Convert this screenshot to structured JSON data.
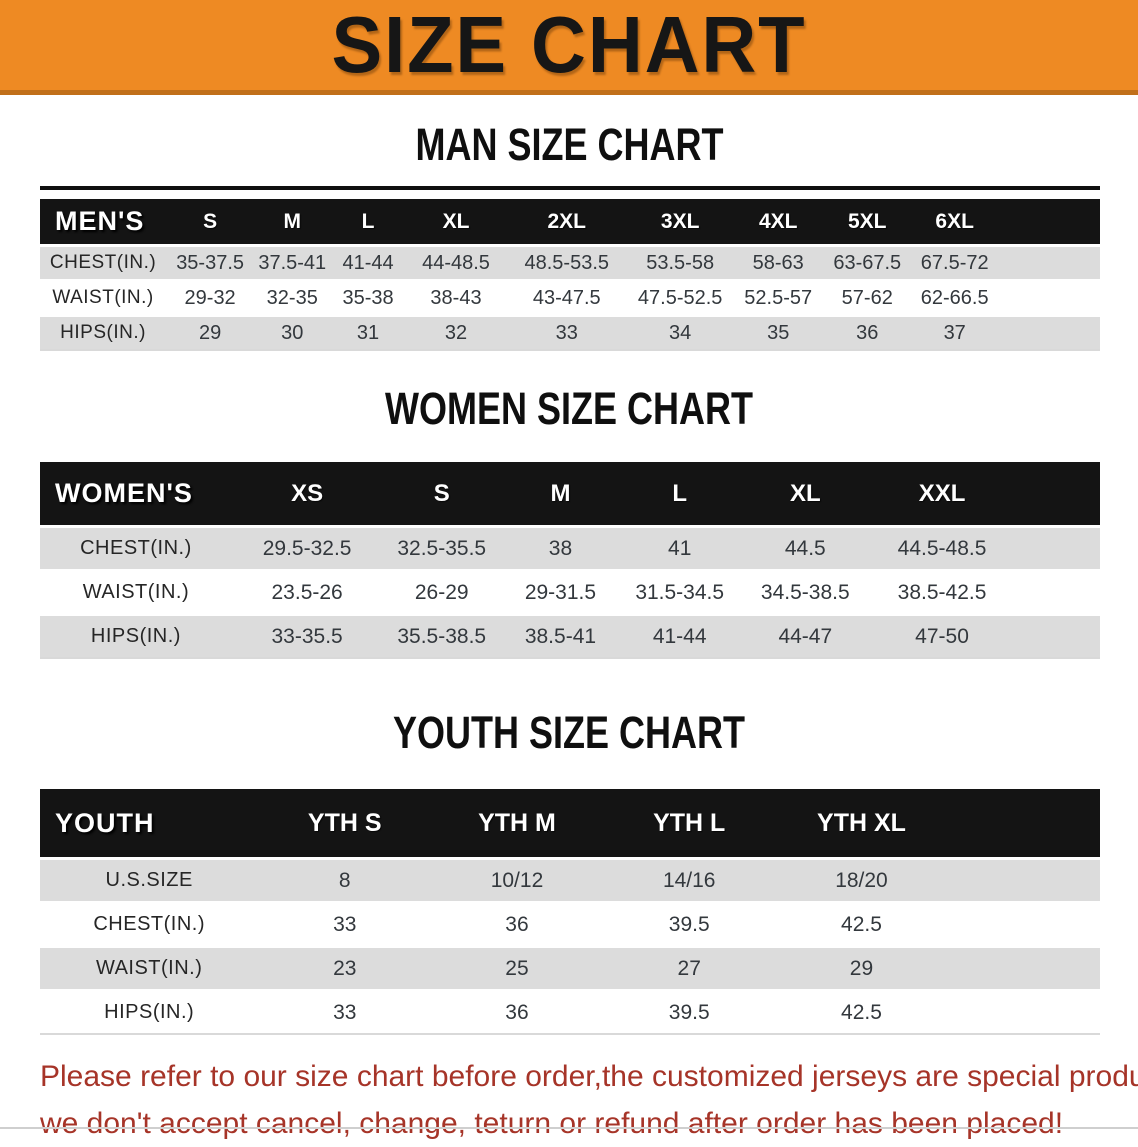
{
  "banner": {
    "title": "SIZE CHART",
    "bg_color": "#ee8a23",
    "text_color": "#161616"
  },
  "colors": {
    "table_header_bg": "#141414",
    "table_header_text": "#ffffff",
    "row_shade": "#dcdcdc",
    "footer_text": "#a63428"
  },
  "sections": [
    {
      "id": "men",
      "title": "MAN SIZE CHART",
      "header": [
        "MEN'S",
        "S",
        "M",
        "L",
        "XL",
        "2XL",
        "3XL",
        "4XL",
        "5XL",
        "6XL"
      ],
      "rows": [
        {
          "label": "CHEST(IN.)",
          "values": [
            "35-37.5",
            "37.5-41",
            "41-44",
            "44-48.5",
            "48.5-53.5",
            "53.5-58",
            "58-63",
            "63-67.5",
            "67.5-72"
          ]
        },
        {
          "label": "WAIST(IN.)",
          "values": [
            "29-32",
            "32-35",
            "35-38",
            "38-43",
            "43-47.5",
            "47.5-52.5",
            "52.5-57",
            "57-62",
            "62-66.5"
          ]
        },
        {
          "label": "HIPS(IN.)",
          "values": [
            "29",
            "30",
            "31",
            "32",
            "33",
            "34",
            "35",
            "36",
            "37"
          ]
        }
      ]
    },
    {
      "id": "women",
      "title": "WOMEN SIZE CHART",
      "header": [
        "WOMEN'S",
        "XS",
        "S",
        "M",
        "L",
        "XL",
        "XXL"
      ],
      "rows": [
        {
          "label": "CHEST(IN.)",
          "values": [
            "29.5-32.5",
            "32.5-35.5",
            "38",
            "41",
            "44.5",
            "44.5-48.5"
          ]
        },
        {
          "label": "WAIST(IN.)",
          "values": [
            "23.5-26",
            "26-29",
            "29-31.5",
            "31.5-34.5",
            "34.5-38.5",
            "38.5-42.5"
          ]
        },
        {
          "label": "HIPS(IN.)",
          "values": [
            "33-35.5",
            "35.5-38.5",
            "38.5-41",
            "41-44",
            "44-47",
            "47-50"
          ]
        }
      ]
    },
    {
      "id": "youth",
      "title": "YOUTH SIZE CHART",
      "header": [
        "YOUTH",
        "YTH S",
        "YTH M",
        "YTH L",
        "YTH XL"
      ],
      "rows": [
        {
          "label": "U.S.SIZE",
          "values": [
            "8",
            "10/12",
            "14/16",
            "18/20"
          ]
        },
        {
          "label": "CHEST(IN.)",
          "values": [
            "33",
            "36",
            "39.5",
            "42.5"
          ]
        },
        {
          "label": "WAIST(IN.)",
          "values": [
            "23",
            "25",
            "27",
            "29"
          ]
        },
        {
          "label": "HIPS(IN.)",
          "values": [
            "33",
            "36",
            "39.5",
            "42.5"
          ]
        }
      ]
    }
  ],
  "footer": {
    "line1": "Please refer to our size chart before order,the customized jerseys are special products,",
    "line2": "we don't accept cancel, change, teturn or refund after order has been placed!"
  }
}
